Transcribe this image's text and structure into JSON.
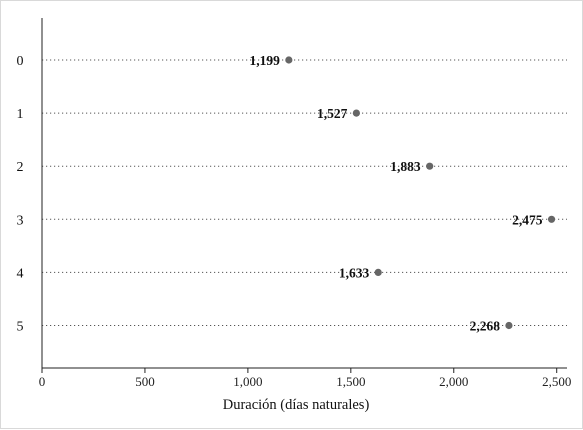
{
  "chart_data": {
    "type": "scatter",
    "title": "",
    "xlabel": "Duración (días naturales)",
    "ylabel": "",
    "xlim": [
      0,
      2550
    ],
    "xticks": [
      0,
      500,
      1000,
      1500,
      2000,
      2500
    ],
    "xtick_labels": [
      "0",
      "500",
      "1,000",
      "1,500",
      "2,000",
      "2,500"
    ],
    "categories": [
      "0",
      "1",
      "2",
      "3",
      "4",
      "5"
    ],
    "values": [
      1199,
      1527,
      1883,
      2475,
      1633,
      2268
    ],
    "value_labels": [
      "1,199",
      "1,527",
      "1,883",
      "2,475",
      "1,633",
      "2,268"
    ],
    "grid": "dotted horizontal guide lines per category",
    "marker_color": "#666666",
    "guide_color": "#555555"
  }
}
